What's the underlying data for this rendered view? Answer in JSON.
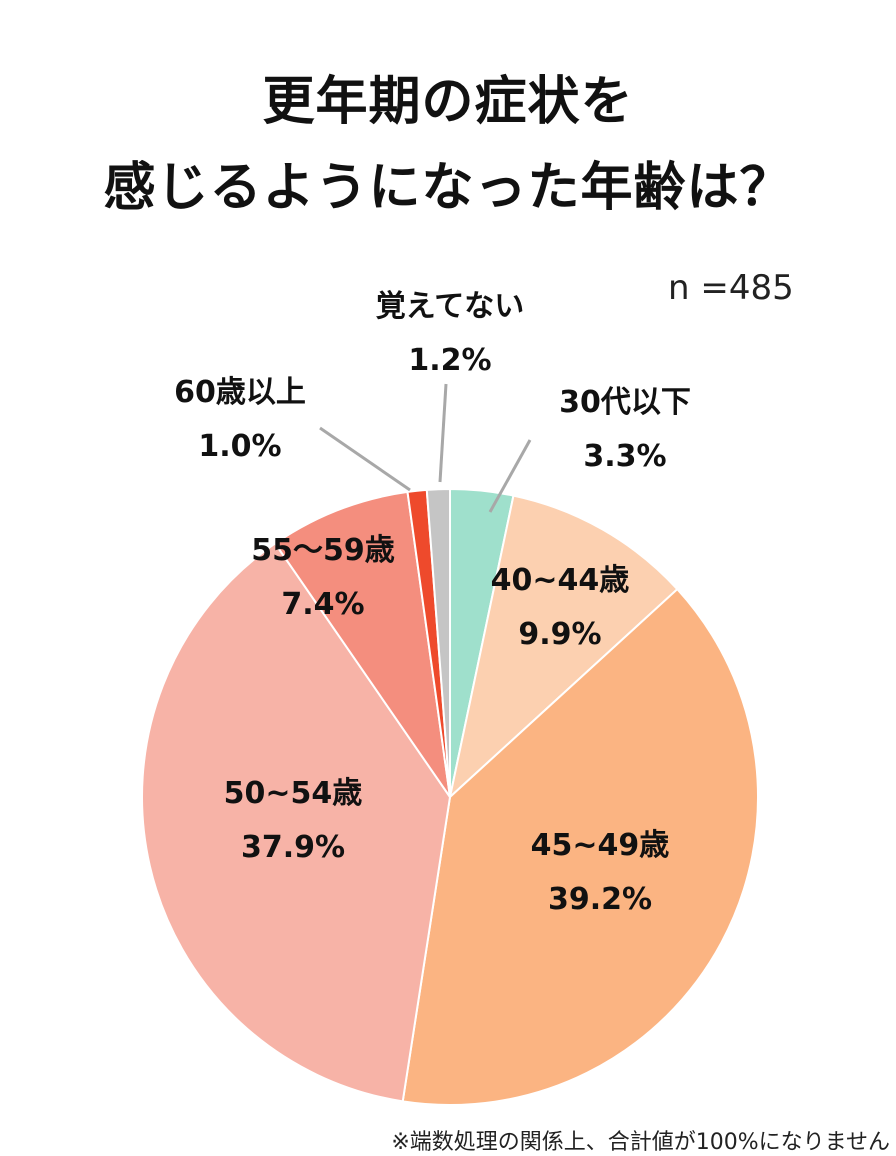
{
  "title_line1": "更年期の症状を",
  "title_line2": "感じるようになった年齢は？",
  "sample_size": "n =485",
  "footnote": "※端数処理の関係上、合計値が100%になりません",
  "chart_data": {
    "type": "pie",
    "start_angle_deg": 0,
    "direction": "clockwise",
    "slices": [
      {
        "label": "30代以下",
        "value": 3.3,
        "display": "3.3%",
        "color": "#9fe0cc",
        "label_mode": "outside"
      },
      {
        "label": "40~44歳",
        "value": 9.9,
        "display": "9.9%",
        "color": "#fcd0b0",
        "label_mode": "inside"
      },
      {
        "label": "45~49歳",
        "value": 39.2,
        "display": "39.2%",
        "color": "#fbb482",
        "label_mode": "inside"
      },
      {
        "label": "50~54歳",
        "value": 37.9,
        "display": "37.9%",
        "color": "#f7b3a7",
        "label_mode": "inside"
      },
      {
        "label": "55〜59歳",
        "value": 7.4,
        "display": "7.4%",
        "color": "#f48e7e",
        "label_mode": "inside"
      },
      {
        "label": "60歳以上",
        "value": 1.0,
        "display": "1.0%",
        "color": "#ee4a2c",
        "label_mode": "outside"
      },
      {
        "label": "覚えてない",
        "value": 1.2,
        "display": "1.2%",
        "color": "#c5c5c5",
        "label_mode": "outside"
      }
    ]
  }
}
